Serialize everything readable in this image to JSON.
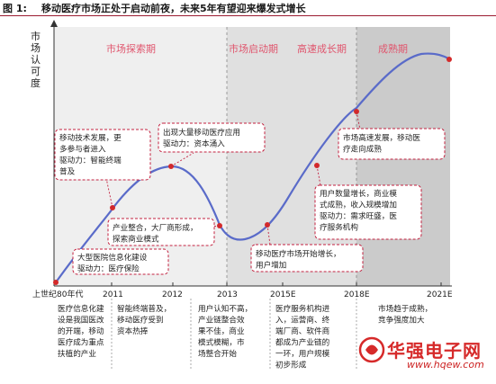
{
  "figure": {
    "label": "图 1:",
    "title": "移动医疗市场正处于启动前夜，未来5年有望迎来爆发式增长"
  },
  "y_axis_label": "市场认可度",
  "phases": [
    {
      "label": "市场探索期",
      "shade": "#ececec"
    },
    {
      "label": "市场启动期",
      "shade": "#dcdcdc"
    },
    {
      "label": "高速成长期",
      "shade": "#dcdcdc"
    },
    {
      "label": "成熟期",
      "shade": "#c8c8c8"
    }
  ],
  "x_ticks": [
    "上世纪80年代",
    "2011",
    "2012",
    "2013",
    "2015E",
    "2018E",
    "2021E"
  ],
  "callouts": [
    {
      "lines": [
        "大型医院信息化建设",
        "驱动力：医疗保险"
      ]
    },
    {
      "lines": [
        "移动技术发展，更",
        "多参与者进入",
        "驱动力：智能终端",
        "普及"
      ]
    },
    {
      "lines": [
        "出现大量移动医疗应用",
        "驱动力：资本涌入"
      ]
    },
    {
      "lines": [
        "产业整合，大厂商形成，",
        "探索商业模式"
      ]
    },
    {
      "lines": [
        "移动医疗市场开始增长，",
        "用户增加"
      ]
    },
    {
      "lines": [
        "用户数量增长，商业模",
        "式成熟，收入规模增加",
        "驱动力：需求旺盛，医",
        "疗服务机构"
      ]
    },
    {
      "lines": [
        "市场高速发展，移动医",
        "疗走向成熟"
      ]
    }
  ],
  "bottom_notes": [
    {
      "lines": [
        "医疗信息化建",
        "设是我国医改",
        "的开端，移动",
        "医疗成为重点",
        "扶植的产业"
      ]
    },
    {
      "lines": [
        "智能终端普及，",
        "移动医疗受到",
        "资本热捧"
      ]
    },
    {
      "lines": [
        "用户认知不高，",
        "产业链整合效",
        "果不佳，商业",
        "模式模糊，市",
        "场整合开始"
      ]
    },
    {
      "lines": [
        "医疗服务机构进",
        "入，运营商、终",
        "端厂商、软件商",
        "都成为产业链的",
        "一环，用户规模",
        "初步形成"
      ]
    },
    {
      "lines": [
        "市场趋于成熟，",
        "竞争强度加大"
      ]
    }
  ],
  "watermark": {
    "name": "华强电子网",
    "url": "www.hqew.com"
  },
  "colors": {
    "curve": "#5a6bc9",
    "point": "#d42a2a",
    "phase_label": "#e0566e",
    "callout_border": "#c3213f",
    "header_rule": "#9b1b30"
  }
}
